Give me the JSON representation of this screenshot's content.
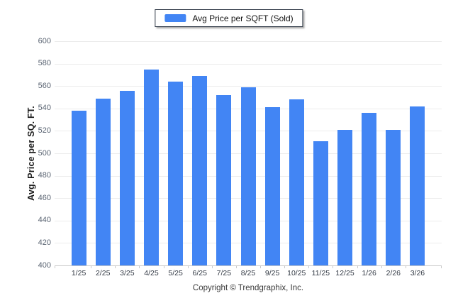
{
  "legend": {
    "label": "Avg Price per SQFT (Sold)"
  },
  "chart_data": {
    "type": "bar",
    "title": "",
    "series_name": "Avg Price per SQFT (Sold)",
    "categories": [
      "1/25",
      "2/25",
      "3/25",
      "4/25",
      "5/25",
      "6/25",
      "7/25",
      "8/25",
      "9/25",
      "10/25",
      "11/25",
      "12/25",
      "1/26",
      "2/26",
      "3/26"
    ],
    "values": [
      538,
      549,
      556,
      575,
      564,
      569,
      552,
      559,
      541,
      548,
      511,
      521,
      536,
      521,
      542
    ],
    "ylabel": "Avg. Price per SQ. FT.",
    "xlabel": "",
    "ylim": [
      400,
      600
    ],
    "yticks": [
      400,
      420,
      440,
      460,
      480,
      500,
      520,
      540,
      560,
      580,
      600
    ],
    "grid": true,
    "legend_position": "top-center",
    "bar_color": "#4285F4"
  },
  "footer": {
    "copyright": "Copyright © Trendgraphix, Inc."
  },
  "colors": {
    "bar": "#4285F4",
    "gridline": "#ececec",
    "axis_line": "#c9c9c9",
    "y_tick_text": "#5a6472",
    "x_tick_text": "#333a45"
  }
}
